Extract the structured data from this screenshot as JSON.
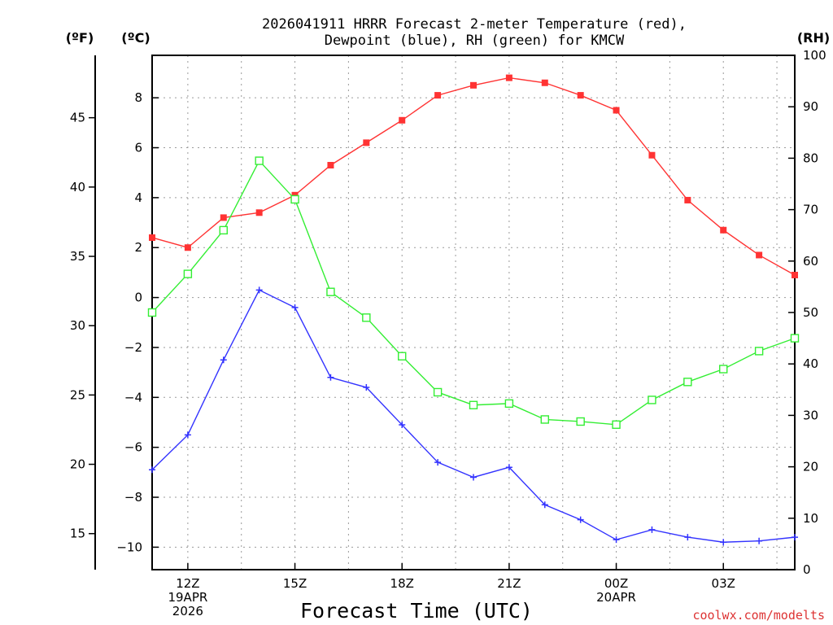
{
  "chart_data": {
    "type": "line",
    "title_line1": "2026041911 HRRR Forecast 2-meter Temperature (red),",
    "title_line2": "Dewpoint (blue), RH (green) for KMCW",
    "xlabel": "Forecast Time (UTC)",
    "credit": "coolwx.com/modelts",
    "unit_labels": {
      "fahrenheit": "(ºF)",
      "celsius": "(ºC)",
      "rh": "(RH)"
    },
    "x_hours": [
      0,
      1,
      2,
      3,
      4,
      5,
      6,
      7,
      8,
      9,
      10,
      11,
      12,
      13,
      14,
      15,
      16,
      17,
      18
    ],
    "x_ticks": [
      {
        "hour": 1,
        "lines": [
          "12Z",
          "19APR",
          "2026"
        ]
      },
      {
        "hour": 4,
        "lines": [
          "15Z"
        ]
      },
      {
        "hour": 7,
        "lines": [
          "18Z"
        ]
      },
      {
        "hour": 10,
        "lines": [
          "21Z"
        ]
      },
      {
        "hour": 13,
        "lines": [
          "00Z",
          "20APR"
        ]
      },
      {
        "hour": 16,
        "lines": [
          "03Z"
        ]
      }
    ],
    "celsius_axis": {
      "range": [
        -10.9,
        9.7
      ],
      "ticks": [
        8,
        6,
        4,
        2,
        0,
        -2,
        -4,
        -6,
        -8,
        -10
      ],
      "tick_labels": [
        "8",
        "6",
        "4",
        "2",
        "0",
        "−2",
        "−4",
        "−6",
        "−8",
        "−10"
      ]
    },
    "fahrenheit_axis": {
      "range": [
        12.4,
        49.5
      ],
      "ticks": [
        45,
        40,
        35,
        30,
        25,
        20,
        15
      ],
      "tick_labels": [
        "45",
        "40",
        "35",
        "30",
        "25",
        "20",
        "15"
      ]
    },
    "rh_axis": {
      "range": [
        0,
        100
      ],
      "ticks": [
        100,
        90,
        80,
        70,
        60,
        50,
        40,
        30,
        20,
        10,
        0
      ],
      "tick_labels": [
        "100",
        "90",
        "80",
        "70",
        "60",
        "50",
        "40",
        "30",
        "20",
        "10",
        "0"
      ]
    },
    "series": [
      {
        "name": "Temperature",
        "unit": "C",
        "color": "#ff3333",
        "marker": "filled-square",
        "values": [
          2.4,
          2.0,
          3.2,
          3.4,
          4.1,
          5.3,
          6.2,
          7.1,
          8.1,
          8.5,
          8.8,
          8.6,
          8.1,
          7.5,
          5.7,
          3.9,
          2.7,
          1.7,
          0.9
        ]
      },
      {
        "name": "Dewpoint",
        "unit": "C",
        "color": "#3333ff",
        "marker": "plus",
        "values": [
          -6.9,
          -5.5,
          -2.5,
          0.3,
          -0.4,
          -3.2,
          -3.6,
          -5.1,
          -6.6,
          -7.2,
          -6.8,
          -8.3,
          -8.9,
          -9.7,
          -9.3,
          -9.6,
          -9.8,
          -9.75,
          -9.6
        ]
      },
      {
        "name": "RH",
        "unit": "%",
        "color": "#33ee33",
        "marker": "open-square",
        "values": [
          50,
          57.5,
          66,
          79.5,
          72,
          54,
          49,
          41.5,
          34.5,
          32,
          32.3,
          29.2,
          28.8,
          28.2,
          33,
          36.5,
          39,
          42.5,
          45
        ]
      }
    ]
  }
}
